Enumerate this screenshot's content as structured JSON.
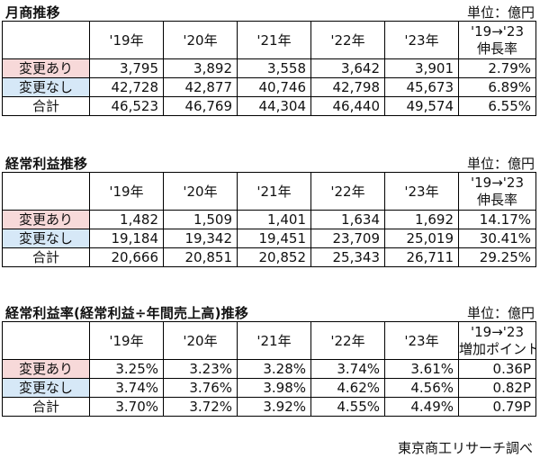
{
  "years": [
    "'19年",
    "'20年",
    "'21年",
    "'22年",
    "'23年"
  ],
  "sections": [
    {
      "title": "月商推移",
      "unit": "単位：億円",
      "growth_header": [
        "'19→'23",
        "伸長率"
      ],
      "rows": [
        {
          "label": "変更あり",
          "values": [
            "3,795",
            "3,892",
            "3,558",
            "3,642",
            "3,901"
          ],
          "growth": "2.79%"
        },
        {
          "label": "変更なし",
          "values": [
            "42,728",
            "42,877",
            "40,746",
            "42,798",
            "45,673"
          ],
          "growth": "6.89%"
        },
        {
          "label": "合計",
          "values": [
            "46,523",
            "46,769",
            "44,304",
            "46,440",
            "49,574"
          ],
          "growth": "6.55%"
        }
      ]
    },
    {
      "title": "経常利益推移",
      "unit": "単位：億円",
      "growth_header": [
        "'19→'23",
        "伸長率"
      ],
      "rows": [
        {
          "label": "変更あり",
          "values": [
            "1,482",
            "1,509",
            "1,401",
            "1,634",
            "1,692"
          ],
          "growth": "14.17%"
        },
        {
          "label": "変更なし",
          "values": [
            "19,184",
            "19,342",
            "19,451",
            "23,709",
            "25,019"
          ],
          "growth": "30.41%"
        },
        {
          "label": "合計",
          "values": [
            "20,666",
            "20,851",
            "20,852",
            "25,343",
            "26,711"
          ],
          "growth": "29.25%"
        }
      ]
    },
    {
      "title": "経常利益率(経常利益÷年間売上高)推移",
      "unit": "単位：億円",
      "growth_header": [
        "'19→'23",
        "増加ポイント"
      ],
      "rows": [
        {
          "label": "変更あり",
          "values": [
            "3.25%",
            "3.23%",
            "3.28%",
            "3.74%",
            "3.61%"
          ],
          "growth": "0.36P"
        },
        {
          "label": "変更なし",
          "values": [
            "3.74%",
            "3.76%",
            "3.98%",
            "4.62%",
            "4.56%"
          ],
          "growth": "0.82P"
        },
        {
          "label": "合計",
          "values": [
            "3.70%",
            "3.72%",
            "3.92%",
            "4.55%",
            "4.49%"
          ],
          "growth": "0.79P"
        }
      ]
    }
  ],
  "row_colors": {
    "変更あり": "#f7d9d9",
    "変更なし": "#d6e8f7",
    "合計": "#ffffff"
  },
  "footnote": "東京商工リサーチ調べ"
}
